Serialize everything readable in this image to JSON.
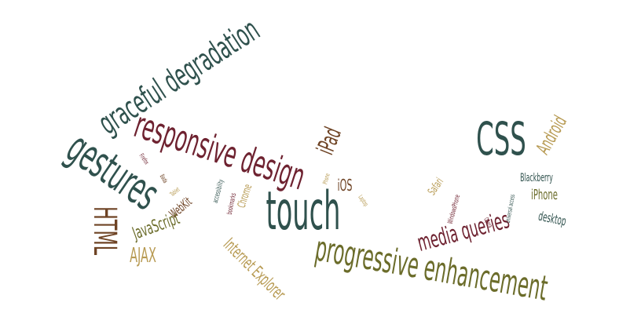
{
  "palette": {
    "dark_teal": "#2f514d",
    "maroon": "#6e2230",
    "olive": "#6b6c2a",
    "brown": "#6e4324",
    "khaki": "#b79a52"
  },
  "words": [
    {
      "text": "graceful degradation",
      "color": "dark_teal"
    },
    {
      "text": "responsive design",
      "color": "maroon"
    },
    {
      "text": "gestures",
      "color": "dark_teal"
    },
    {
      "text": "iPad",
      "color": "brown"
    },
    {
      "text": "CSS",
      "color": "dark_teal"
    },
    {
      "text": "Android",
      "color": "khaki"
    },
    {
      "text": "touch",
      "color": "dark_teal"
    },
    {
      "text": "progressive enhancement",
      "color": "olive"
    },
    {
      "text": "media queries",
      "color": "maroon"
    },
    {
      "text": "HTML",
      "color": "brown"
    },
    {
      "text": "JavaScript",
      "color": "olive"
    },
    {
      "text": "AJAX",
      "color": "khaki"
    },
    {
      "text": "WebKit",
      "color": "brown"
    },
    {
      "text": "Internet Explorer",
      "color": "khaki"
    },
    {
      "text": "iOS",
      "color": "brown"
    },
    {
      "text": "Safari",
      "color": "khaki"
    },
    {
      "text": "Blackberry",
      "color": "dark_teal"
    },
    {
      "text": "iPhone",
      "color": "olive"
    },
    {
      "text": "desktop",
      "color": "dark_teal"
    },
    {
      "text": "Chrome",
      "color": "khaki"
    },
    {
      "text": "accessibility",
      "color": "dark_teal"
    },
    {
      "text": "bookmarks",
      "color": "maroon"
    },
    {
      "text": "Firefox",
      "color": "maroon"
    },
    {
      "text": "Bada",
      "color": "brown"
    },
    {
      "text": "Tablet",
      "color": "khaki"
    },
    {
      "text": "Phone",
      "color": "khaki"
    },
    {
      "text": "Laptop",
      "color": "khaki"
    },
    {
      "text": "WindowsPhone",
      "color": "maroon"
    },
    {
      "text": "Opera",
      "color": "maroon"
    },
    {
      "text": "universal access",
      "color": "dark_teal"
    }
  ]
}
